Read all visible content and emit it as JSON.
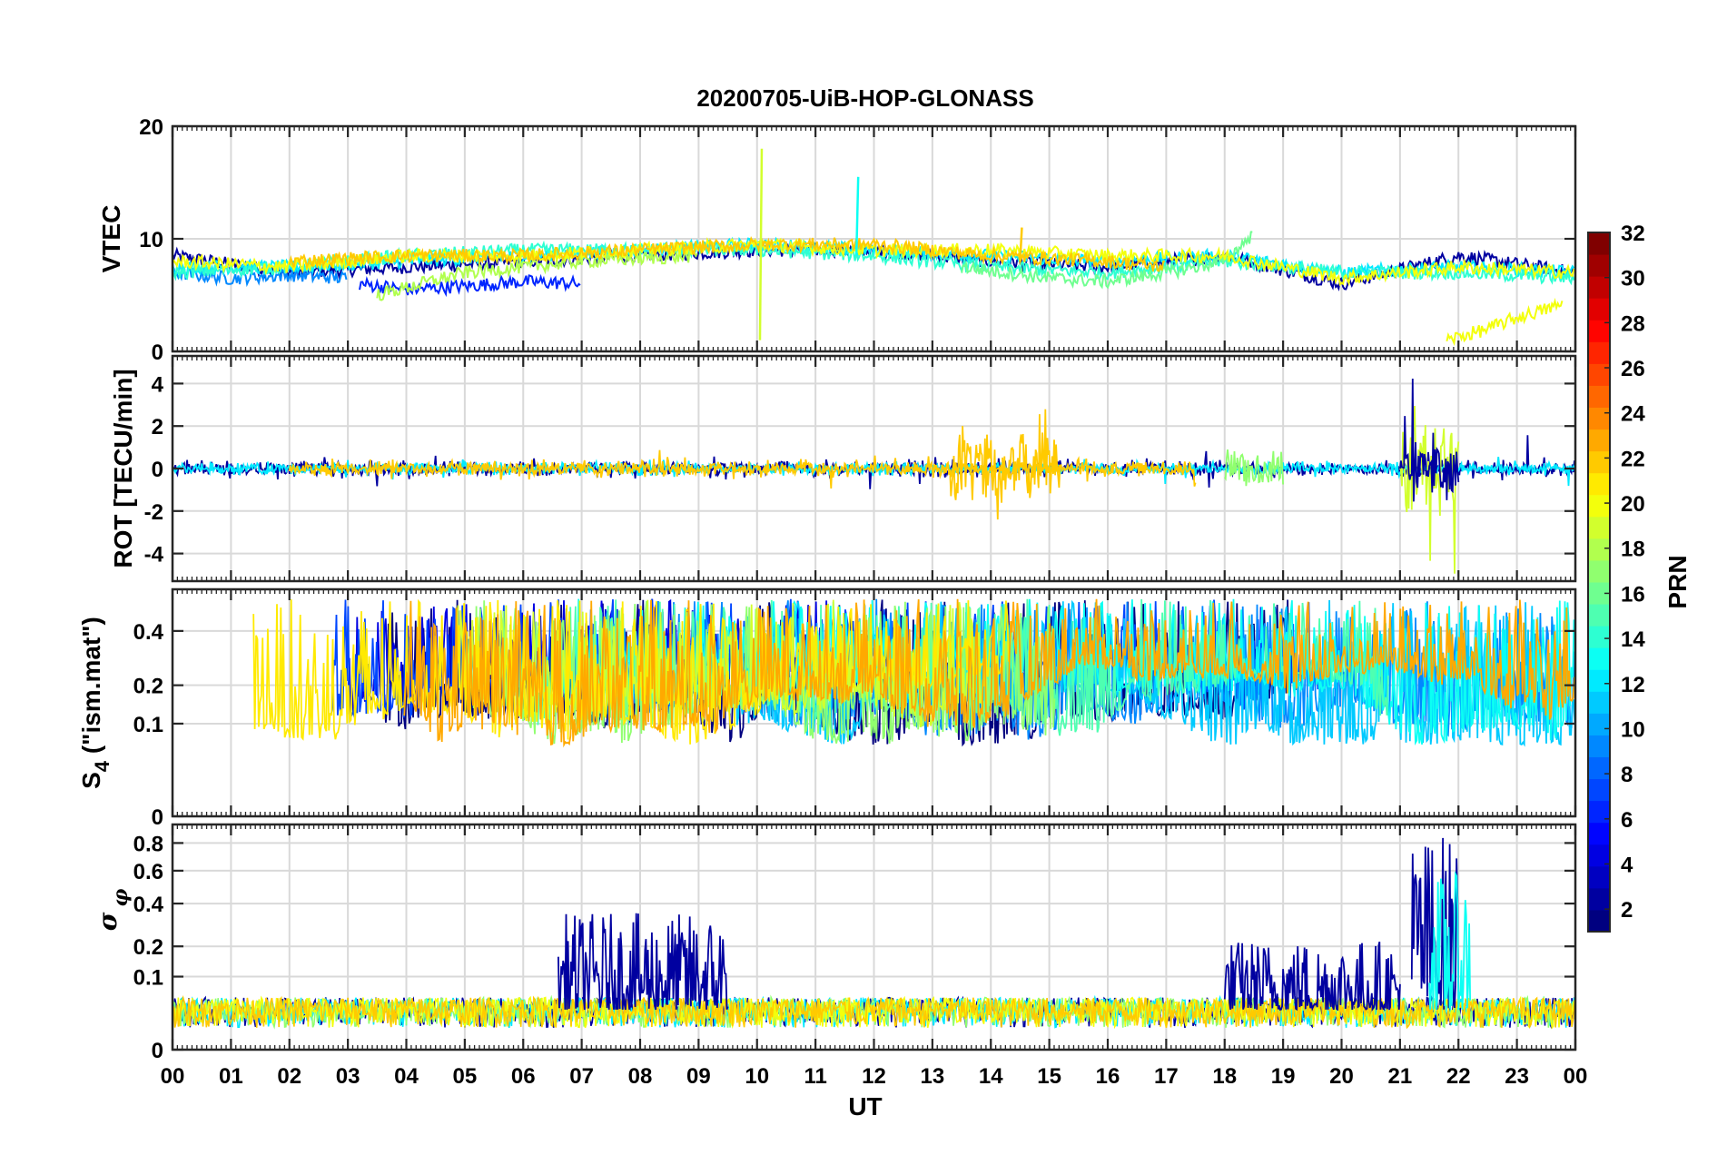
{
  "chart_data": {
    "type": "line",
    "title": "20200705-UiB-HOP-GLONASS",
    "xlabel": "UT",
    "x_tick_labels": [
      "00",
      "01",
      "02",
      "03",
      "04",
      "05",
      "06",
      "07",
      "08",
      "09",
      "10",
      "11",
      "12",
      "13",
      "14",
      "15",
      "16",
      "17",
      "18",
      "19",
      "20",
      "21",
      "22",
      "23",
      "00"
    ],
    "xlim_hours": [
      0,
      24
    ],
    "grid": true,
    "colormap": "jet",
    "colorbar": {
      "label": "PRN",
      "range": [
        1,
        32
      ],
      "tick_labels": [
        "2",
        "4",
        "6",
        "8",
        "10",
        "12",
        "14",
        "16",
        "18",
        "20",
        "22",
        "24",
        "26",
        "28",
        "30",
        "32"
      ],
      "placement": "right"
    },
    "panels": [
      {
        "name": "vtec",
        "ylabel": "VTEC",
        "ylim": [
          0,
          20
        ],
        "yticks": [
          0,
          10,
          20
        ],
        "series": [
          {
            "prn": 2,
            "x": [
              0,
              2,
              4,
              6,
              8,
              10,
              12,
              14,
              16,
              18,
              20,
              22,
              24
            ],
            "y": [
              8.5,
              7,
              7.5,
              8,
              8.5,
              9,
              9,
              8,
              7.5,
              8.5,
              6,
              8.5,
              7
            ]
          },
          {
            "prn": 6,
            "x": [
              3.2,
              4,
              5,
              6,
              7
            ],
            "y": [
              6,
              5.5,
              5.8,
              6.2,
              6
            ]
          },
          {
            "prn": 9,
            "x": [
              0,
              1,
              2,
              3
            ],
            "y": [
              7,
              6.5,
              6.8,
              6.5
            ]
          },
          {
            "prn": 12,
            "x": [
              0,
              2,
              4,
              6,
              8,
              10,
              12,
              14,
              16,
              18,
              20,
              22,
              24
            ],
            "y": [
              7.5,
              7.5,
              8,
              8.5,
              9,
              9.5,
              9,
              8.5,
              8,
              8.5,
              7,
              7.5,
              7
            ]
          },
          {
            "prn": 14,
            "x": [
              0,
              2,
              4,
              6,
              8,
              10,
              12,
              14,
              16,
              18,
              20,
              22,
              24
            ],
            "y": [
              7,
              7.5,
              8.5,
              9,
              9,
              9,
              8.5,
              7.5,
              7,
              8,
              7,
              7,
              6.5
            ]
          },
          {
            "prn": 16,
            "x": [
              13.5,
              15,
              16,
              17,
              18,
              18.5
            ],
            "y": [
              7.5,
              6.5,
              6.2,
              7,
              8,
              10.5
            ]
          },
          {
            "prn": 18,
            "x": [
              3.5,
              5,
              7,
              9
            ],
            "y": [
              5,
              7,
              8,
              8.5
            ]
          },
          {
            "prn": 20,
            "x": [
              0,
              2,
              4,
              6,
              8,
              10,
              12,
              14,
              16,
              18,
              20,
              22,
              24
            ],
            "y": [
              8,
              7.5,
              8.5,
              8.5,
              9,
              9.5,
              9,
              9,
              8.5,
              8.5,
              6.5,
              7.5,
              7
            ]
          },
          {
            "prn": 20,
            "x": [
              21.8,
              22.5,
              23,
              23.8
            ],
            "y": [
              1,
              2,
              3,
              4.2
            ]
          },
          {
            "prn": 22,
            "x": [
              2,
              4,
              6,
              8,
              10,
              12,
              14,
              16,
              17
            ],
            "y": [
              8,
              8.5,
              8.5,
              9,
              9.5,
              9.5,
              8.5,
              8,
              7.5
            ]
          }
        ],
        "spikes": [
          {
            "prn": 19,
            "x": 10.05,
            "ymin": 1,
            "ymax": 18
          },
          {
            "prn": 13,
            "x": 11.7,
            "ymin": 8.5,
            "ymax": 15.5
          },
          {
            "prn": 22,
            "x": 14.5,
            "ymin": 8,
            "ymax": 11
          }
        ]
      },
      {
        "name": "rot",
        "ylabel": "ROT [TECU/min]",
        "ylim": [
          -5.3,
          5.3
        ],
        "yticks": [
          -4,
          -2,
          0,
          2,
          4
        ],
        "bursts": [
          {
            "prn": 2,
            "x0": 0,
            "x1": 24,
            "amp": 0.6
          },
          {
            "prn": 12,
            "x0": 0,
            "x1": 24,
            "amp": 0.5
          },
          {
            "prn": 22,
            "x0": 2,
            "x1": 17.5,
            "amp": 0.6
          },
          {
            "prn": 22,
            "x0": 13.3,
            "x1": 15.2,
            "amp": 3.5
          },
          {
            "prn": 17,
            "x0": 18,
            "x1": 19,
            "amp": 1.8
          },
          {
            "prn": 19,
            "x0": 21,
            "x1": 22,
            "amp": 4.5
          },
          {
            "prn": 2,
            "x0": 21,
            "x1": 22,
            "amp": 2.5
          }
        ]
      },
      {
        "name": "s4",
        "ylabel": "S4 (\"ism.mat\")",
        "ylabel_main": "S",
        "ylabel_sub": "4",
        "ylabel_rest": " (\"ism.mat\")",
        "ylim": [
          0,
          0.6
        ],
        "yticks": [
          0,
          0.1,
          0.2,
          0.4
        ],
        "scale": "sqrt",
        "series_prns": [
          1,
          4,
          7,
          9,
          11,
          13,
          15,
          17,
          19,
          21,
          23
        ],
        "typical_range": [
          0.06,
          0.55
        ]
      },
      {
        "name": "sigma_phi",
        "ylabel": "σ φ",
        "ylabel_main": "σ",
        "ylabel_sub": "φ",
        "ylim": [
          0,
          0.95
        ],
        "yticks": [
          0,
          0.1,
          0.2,
          0.4,
          0.6,
          0.8
        ],
        "scale": "sqrt",
        "baseline": 0.03,
        "bursts": [
          {
            "prn": 2,
            "x0": 6.6,
            "x1": 9.5,
            "amp": 0.32
          },
          {
            "prn": 2,
            "x0": 18,
            "x1": 21,
            "amp": 0.2
          },
          {
            "prn": 2,
            "x0": 21.2,
            "x1": 22,
            "amp": 0.85
          },
          {
            "prn": 13,
            "x0": 21.5,
            "x1": 22.2,
            "amp": 0.55
          }
        ]
      }
    ]
  }
}
